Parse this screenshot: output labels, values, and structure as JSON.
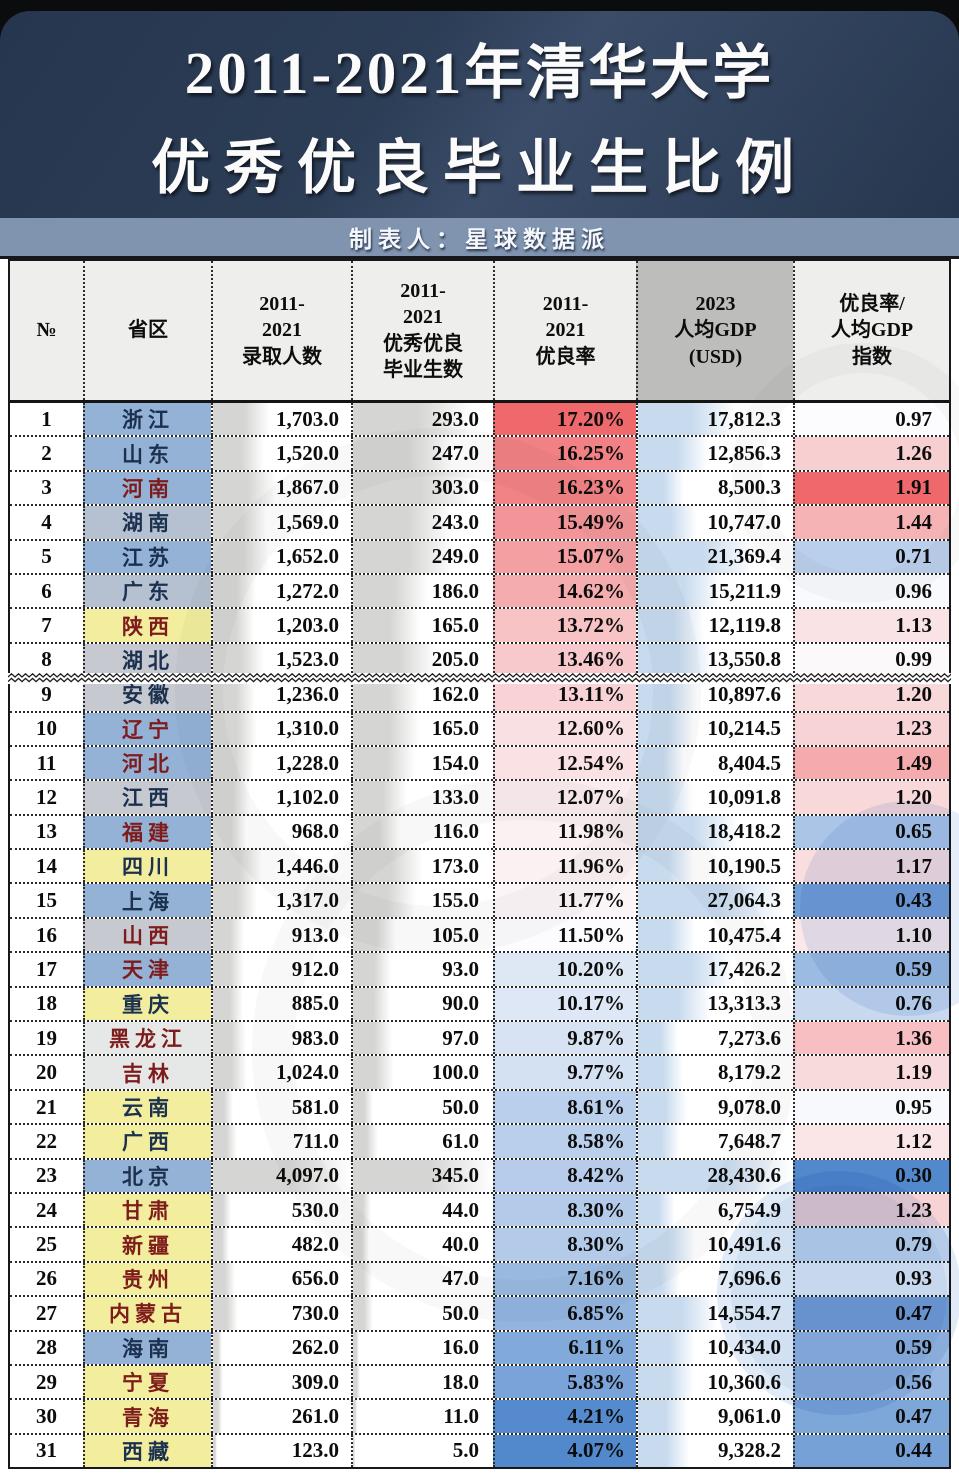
{
  "page": {
    "title_line1": "2011-2021年清华大学",
    "title_line2": "优秀优良毕业生比例",
    "creator": "制表人：星球数据派"
  },
  "table": {
    "headers": [
      "№",
      "省区",
      "2011-\n2021\n录取人数",
      "2011-\n2021\n优秀优良\n毕业生数",
      "2011-\n2021\n优良率",
      "2023\n人均GDP\n(USD)",
      "优良率/\n人均GDP\n指数"
    ],
    "rows": [
      {
        "no": "1",
        "province": "浙江",
        "admitted": "1,703.0",
        "admitted_v": 1703,
        "grads": "293.0",
        "grads_v": 293,
        "rate": "17.20%",
        "rate_v": 17.2,
        "gdp": "17,812.3",
        "gdp_v": 17812.3,
        "idx": "0.97",
        "idx_v": 0.97,
        "bg": "blue",
        "fg": "navy"
      },
      {
        "no": "2",
        "province": "山东",
        "admitted": "1,520.0",
        "admitted_v": 1520,
        "grads": "247.0",
        "grads_v": 247,
        "rate": "16.25%",
        "rate_v": 16.25,
        "gdp": "12,856.3",
        "gdp_v": 12856.3,
        "idx": "1.26",
        "idx_v": 1.26,
        "bg": "blue",
        "fg": "navy"
      },
      {
        "no": "3",
        "province": "河南",
        "admitted": "1,867.0",
        "admitted_v": 1867,
        "grads": "303.0",
        "grads_v": 303,
        "rate": "16.23%",
        "rate_v": 16.23,
        "gdp": "8,500.3",
        "gdp_v": 8500.3,
        "idx": "1.91",
        "idx_v": 1.91,
        "bg": "blue",
        "fg": "red"
      },
      {
        "no": "4",
        "province": "湖南",
        "admitted": "1,569.0",
        "admitted_v": 1569,
        "grads": "243.0",
        "grads_v": 243,
        "rate": "15.49%",
        "rate_v": 15.49,
        "gdp": "10,747.0",
        "gdp_v": 10747.0,
        "idx": "1.44",
        "idx_v": 1.44,
        "bg": "grayblue",
        "fg": "navy"
      },
      {
        "no": "5",
        "province": "江苏",
        "admitted": "1,652.0",
        "admitted_v": 1652,
        "grads": "249.0",
        "grads_v": 249,
        "rate": "15.07%",
        "rate_v": 15.07,
        "gdp": "21,369.4",
        "gdp_v": 21369.4,
        "idx": "0.71",
        "idx_v": 0.71,
        "bg": "blue",
        "fg": "navy"
      },
      {
        "no": "6",
        "province": "广东",
        "admitted": "1,272.0",
        "admitted_v": 1272,
        "grads": "186.0",
        "grads_v": 186,
        "rate": "14.62%",
        "rate_v": 14.62,
        "gdp": "15,211.9",
        "gdp_v": 15211.9,
        "idx": "0.96",
        "idx_v": 0.96,
        "bg": "grayblue",
        "fg": "navy"
      },
      {
        "no": "7",
        "province": "陕西",
        "admitted": "1,203.0",
        "admitted_v": 1203,
        "grads": "165.0",
        "grads_v": 165,
        "rate": "13.72%",
        "rate_v": 13.72,
        "gdp": "12,119.8",
        "gdp_v": 12119.8,
        "idx": "1.13",
        "idx_v": 1.13,
        "bg": "yellow",
        "fg": "red"
      },
      {
        "no": "8",
        "province": "湖北",
        "admitted": "1,523.0",
        "admitted_v": 1523,
        "grads": "205.0",
        "grads_v": 205,
        "rate": "13.46%",
        "rate_v": 13.46,
        "gdp": "13,550.8",
        "gdp_v": 13550.8,
        "idx": "0.99",
        "idx_v": 0.99,
        "bg": "gray",
        "fg": "navy"
      },
      {
        "no": "9",
        "province": "安徽",
        "admitted": "1,236.0",
        "admitted_v": 1236,
        "grads": "162.0",
        "grads_v": 162,
        "rate": "13.11%",
        "rate_v": 13.11,
        "gdp": "10,897.6",
        "gdp_v": 10897.6,
        "idx": "1.20",
        "idx_v": 1.2,
        "bg": "gray",
        "fg": "navy"
      },
      {
        "no": "10",
        "province": "辽宁",
        "admitted": "1,310.0",
        "admitted_v": 1310,
        "grads": "165.0",
        "grads_v": 165,
        "rate": "12.60%",
        "rate_v": 12.6,
        "gdp": "10,214.5",
        "gdp_v": 10214.5,
        "idx": "1.23",
        "idx_v": 1.23,
        "bg": "blue",
        "fg": "red"
      },
      {
        "no": "11",
        "province": "河北",
        "admitted": "1,228.0",
        "admitted_v": 1228,
        "grads": "154.0",
        "grads_v": 154,
        "rate": "12.54%",
        "rate_v": 12.54,
        "gdp": "8,404.5",
        "gdp_v": 8404.5,
        "idx": "1.49",
        "idx_v": 1.49,
        "bg": "blue",
        "fg": "red"
      },
      {
        "no": "12",
        "province": "江西",
        "admitted": "1,102.0",
        "admitted_v": 1102,
        "grads": "133.0",
        "grads_v": 133,
        "rate": "12.07%",
        "rate_v": 12.07,
        "gdp": "10,091.8",
        "gdp_v": 10091.8,
        "idx": "1.20",
        "idx_v": 1.2,
        "bg": "gray",
        "fg": "navy"
      },
      {
        "no": "13",
        "province": "福建",
        "admitted": "968.0",
        "admitted_v": 968,
        "grads": "116.0",
        "grads_v": 116,
        "rate": "11.98%",
        "rate_v": 11.98,
        "gdp": "18,418.2",
        "gdp_v": 18418.2,
        "idx": "0.65",
        "idx_v": 0.65,
        "bg": "blue",
        "fg": "red"
      },
      {
        "no": "14",
        "province": "四川",
        "admitted": "1,446.0",
        "admitted_v": 1446,
        "grads": "173.0",
        "grads_v": 173,
        "rate": "11.96%",
        "rate_v": 11.96,
        "gdp": "10,190.5",
        "gdp_v": 10190.5,
        "idx": "1.17",
        "idx_v": 1.17,
        "bg": "yellow",
        "fg": "navy"
      },
      {
        "no": "15",
        "province": "上海",
        "admitted": "1,317.0",
        "admitted_v": 1317,
        "grads": "155.0",
        "grads_v": 155,
        "rate": "11.77%",
        "rate_v": 11.77,
        "gdp": "27,064.3",
        "gdp_v": 27064.3,
        "idx": "0.43",
        "idx_v": 0.43,
        "bg": "blue",
        "fg": "navy"
      },
      {
        "no": "16",
        "province": "山西",
        "admitted": "913.0",
        "admitted_v": 913,
        "grads": "105.0",
        "grads_v": 105,
        "rate": "11.50%",
        "rate_v": 11.5,
        "gdp": "10,475.4",
        "gdp_v": 10475.4,
        "idx": "1.10",
        "idx_v": 1.1,
        "bg": "gray",
        "fg": "red"
      },
      {
        "no": "17",
        "province": "天津",
        "admitted": "912.0",
        "admitted_v": 912,
        "grads": "93.0",
        "grads_v": 93,
        "rate": "10.20%",
        "rate_v": 10.2,
        "gdp": "17,426.2",
        "gdp_v": 17426.2,
        "idx": "0.59",
        "idx_v": 0.59,
        "bg": "blue",
        "fg": "red"
      },
      {
        "no": "18",
        "province": "重庆",
        "admitted": "885.0",
        "admitted_v": 885,
        "grads": "90.0",
        "grads_v": 90,
        "rate": "10.17%",
        "rate_v": 10.17,
        "gdp": "13,313.3",
        "gdp_v": 13313.3,
        "idx": "0.76",
        "idx_v": 0.76,
        "bg": "yellow",
        "fg": "navy"
      },
      {
        "no": "19",
        "province": "黑龙江",
        "admitted": "983.0",
        "admitted_v": 983,
        "grads": "97.0",
        "grads_v": 97,
        "rate": "9.87%",
        "rate_v": 9.87,
        "gdp": "7,273.6",
        "gdp_v": 7273.6,
        "idx": "1.36",
        "idx_v": 1.36,
        "bg": "white",
        "fg": "red"
      },
      {
        "no": "20",
        "province": "吉林",
        "admitted": "1,024.0",
        "admitted_v": 1024,
        "grads": "100.0",
        "grads_v": 100,
        "rate": "9.77%",
        "rate_v": 9.77,
        "gdp": "8,179.2",
        "gdp_v": 8179.2,
        "idx": "1.19",
        "idx_v": 1.19,
        "bg": "white",
        "fg": "red"
      },
      {
        "no": "21",
        "province": "云南",
        "admitted": "581.0",
        "admitted_v": 581,
        "grads": "50.0",
        "grads_v": 50,
        "rate": "8.61%",
        "rate_v": 8.61,
        "gdp": "9,078.0",
        "gdp_v": 9078.0,
        "idx": "0.95",
        "idx_v": 0.95,
        "bg": "yellow",
        "fg": "navy"
      },
      {
        "no": "22",
        "province": "广西",
        "admitted": "711.0",
        "admitted_v": 711,
        "grads": "61.0",
        "grads_v": 61,
        "rate": "8.58%",
        "rate_v": 8.58,
        "gdp": "7,648.7",
        "gdp_v": 7648.7,
        "idx": "1.12",
        "idx_v": 1.12,
        "bg": "yellow",
        "fg": "navy"
      },
      {
        "no": "23",
        "province": "北京",
        "admitted": "4,097.0",
        "admitted_v": 4097,
        "grads": "345.0",
        "grads_v": 345,
        "rate": "8.42%",
        "rate_v": 8.42,
        "gdp": "28,430.6",
        "gdp_v": 28430.6,
        "idx": "0.30",
        "idx_v": 0.3,
        "bg": "blue",
        "fg": "navy"
      },
      {
        "no": "24",
        "province": "甘肃",
        "admitted": "530.0",
        "admitted_v": 530,
        "grads": "44.0",
        "grads_v": 44,
        "rate": "8.30%",
        "rate_v": 8.3,
        "gdp": "6,754.9",
        "gdp_v": 6754.9,
        "idx": "1.23",
        "idx_v": 1.23,
        "bg": "yellow",
        "fg": "red"
      },
      {
        "no": "25",
        "province": "新疆",
        "admitted": "482.0",
        "admitted_v": 482,
        "grads": "40.0",
        "grads_v": 40,
        "rate": "8.30%",
        "rate_v": 8.3,
        "gdp": "10,491.6",
        "gdp_v": 10491.6,
        "idx": "0.79",
        "idx_v": 0.79,
        "bg": "yellow",
        "fg": "red"
      },
      {
        "no": "26",
        "province": "贵州",
        "admitted": "656.0",
        "admitted_v": 656,
        "grads": "47.0",
        "grads_v": 47,
        "rate": "7.16%",
        "rate_v": 7.16,
        "gdp": "7,696.6",
        "gdp_v": 7696.6,
        "idx": "0.93",
        "idx_v": 0.93,
        "bg": "yellow",
        "fg": "red"
      },
      {
        "no": "27",
        "province": "内蒙古",
        "admitted": "730.0",
        "admitted_v": 730,
        "grads": "50.0",
        "grads_v": 50,
        "rate": "6.85%",
        "rate_v": 6.85,
        "gdp": "14,554.7",
        "gdp_v": 14554.7,
        "idx": "0.47",
        "idx_v": 0.47,
        "bg": "yellow",
        "fg": "red"
      },
      {
        "no": "28",
        "province": "海南",
        "admitted": "262.0",
        "admitted_v": 262,
        "grads": "16.0",
        "grads_v": 16,
        "rate": "6.11%",
        "rate_v": 6.11,
        "gdp": "10,434.0",
        "gdp_v": 10434.0,
        "idx": "0.59",
        "idx_v": 0.59,
        "bg": "blue",
        "fg": "navy"
      },
      {
        "no": "29",
        "province": "宁夏",
        "admitted": "309.0",
        "admitted_v": 309,
        "grads": "18.0",
        "grads_v": 18,
        "rate": "5.83%",
        "rate_v": 5.83,
        "gdp": "10,360.6",
        "gdp_v": 10360.6,
        "idx": "0.56",
        "idx_v": 0.56,
        "bg": "yellow",
        "fg": "red"
      },
      {
        "no": "30",
        "province": "青海",
        "admitted": "261.0",
        "admitted_v": 261,
        "grads": "11.0",
        "grads_v": 11,
        "rate": "4.21%",
        "rate_v": 4.21,
        "gdp": "9,061.0",
        "gdp_v": 9061.0,
        "idx": "0.47",
        "idx_v": 0.47,
        "bg": "yellow",
        "fg": "red"
      },
      {
        "no": "31",
        "province": "西藏",
        "admitted": "123.0",
        "admitted_v": 123,
        "grads": "5.0",
        "grads_v": 5,
        "rate": "4.07%",
        "rate_v": 4.07,
        "gdp": "9,328.2",
        "gdp_v": 9328.2,
        "idx": "0.44",
        "idx_v": 0.44,
        "bg": "yellow",
        "fg": "navy"
      }
    ]
  },
  "scales": {
    "rate": {
      "min": 4.07,
      "mid": 11.5,
      "max": 17.2
    },
    "index": {
      "min": 0.3,
      "mid": 0.97,
      "max": 1.91
    },
    "bars": {
      "admitted_max": 4097,
      "grads_max": 345,
      "gdp_max": 28430.6
    }
  },
  "colors": {
    "title_bg": "#2c3d56",
    "band_bg": "#8094b0",
    "header_bg": "#eeeeec",
    "header_gdp_bg": "#bdbdbb",
    "border": "#2b2b2b",
    "scale_red": "#ef696c",
    "scale_white": "#fcfcfe",
    "scale_blue": "#5289cd",
    "bar_gray": "#d5d5d3",
    "bar_blue": "#c7daee",
    "prov_blue": "#93b2d6",
    "prov_grayblue": "#b5c1d0",
    "prov_gray": "#c6cad0",
    "prov_yellow": "#f2ee9d",
    "prov_white": "#e6e8e8",
    "text_navy": "#1c3050",
    "text_red": "#7e1c1c"
  },
  "chart_data": {
    "type": "table",
    "title": "2011-2021年清华大学优秀优良毕业生比例",
    "source": "制表人：星球数据派",
    "columns": [
      "№",
      "省区",
      "2011-2021录取人数",
      "2011-2021优秀优良毕业生数",
      "2011-2021优良率",
      "2023人均GDP(USD)",
      "优良率/人均GDP指数"
    ],
    "rows": [
      [
        1,
        "浙江",
        1703.0,
        293.0,
        "17.20%",
        17812.3,
        0.97
      ],
      [
        2,
        "山东",
        1520.0,
        247.0,
        "16.25%",
        12856.3,
        1.26
      ],
      [
        3,
        "河南",
        1867.0,
        303.0,
        "16.23%",
        8500.3,
        1.91
      ],
      [
        4,
        "湖南",
        1569.0,
        243.0,
        "15.49%",
        10747.0,
        1.44
      ],
      [
        5,
        "江苏",
        1652.0,
        249.0,
        "15.07%",
        21369.4,
        0.71
      ],
      [
        6,
        "广东",
        1272.0,
        186.0,
        "14.62%",
        15211.9,
        0.96
      ],
      [
        7,
        "陕西",
        1203.0,
        165.0,
        "13.72%",
        12119.8,
        1.13
      ],
      [
        8,
        "湖北",
        1523.0,
        205.0,
        "13.46%",
        13550.8,
        0.99
      ],
      [
        9,
        "安徽",
        1236.0,
        162.0,
        "13.11%",
        10897.6,
        1.2
      ],
      [
        10,
        "辽宁",
        1310.0,
        165.0,
        "12.60%",
        10214.5,
        1.23
      ],
      [
        11,
        "河北",
        1228.0,
        154.0,
        "12.54%",
        8404.5,
        1.49
      ],
      [
        12,
        "江西",
        1102.0,
        133.0,
        "12.07%",
        10091.8,
        1.2
      ],
      [
        13,
        "福建",
        968.0,
        116.0,
        "11.98%",
        18418.2,
        0.65
      ],
      [
        14,
        "四川",
        1446.0,
        173.0,
        "11.96%",
        10190.5,
        1.17
      ],
      [
        15,
        "上海",
        1317.0,
        155.0,
        "11.77%",
        27064.3,
        0.43
      ],
      [
        16,
        "山西",
        913.0,
        105.0,
        "11.50%",
        10475.4,
        1.1
      ],
      [
        17,
        "天津",
        912.0,
        93.0,
        "10.20%",
        17426.2,
        0.59
      ],
      [
        18,
        "重庆",
        885.0,
        90.0,
        "10.17%",
        13313.3,
        0.76
      ],
      [
        19,
        "黑龙江",
        983.0,
        97.0,
        "9.87%",
        7273.6,
        1.36
      ],
      [
        20,
        "吉林",
        1024.0,
        100.0,
        "9.77%",
        8179.2,
        1.19
      ],
      [
        21,
        "云南",
        581.0,
        50.0,
        "8.61%",
        9078.0,
        0.95
      ],
      [
        22,
        "广西",
        711.0,
        61.0,
        "8.58%",
        7648.7,
        1.12
      ],
      [
        23,
        "北京",
        4097.0,
        345.0,
        "8.42%",
        28430.6,
        0.3
      ],
      [
        24,
        "甘肃",
        530.0,
        44.0,
        "8.30%",
        6754.9,
        1.23
      ],
      [
        25,
        "新疆",
        482.0,
        40.0,
        "8.30%",
        10491.6,
        0.79
      ],
      [
        26,
        "贵州",
        656.0,
        47.0,
        "7.16%",
        7696.6,
        0.93
      ],
      [
        27,
        "内蒙古",
        730.0,
        50.0,
        "6.85%",
        14554.7,
        0.47
      ],
      [
        28,
        "海南",
        262.0,
        16.0,
        "6.11%",
        10434.0,
        0.59
      ],
      [
        29,
        "宁夏",
        309.0,
        18.0,
        "5.83%",
        10360.6,
        0.56
      ],
      [
        30,
        "青海",
        261.0,
        11.0,
        "4.21%",
        9061.0,
        0.47
      ],
      [
        31,
        "西藏",
        123.0,
        5.0,
        "4.07%",
        9328.2,
        0.44
      ]
    ]
  }
}
